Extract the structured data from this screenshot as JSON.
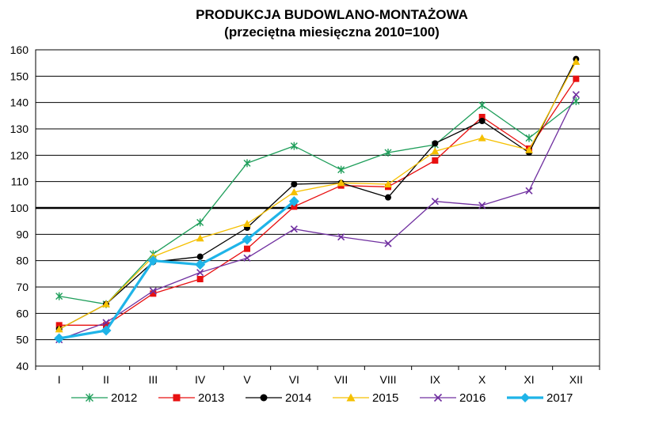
{
  "chart_data": {
    "type": "line",
    "title": "PRODUKCJA BUDOWLANO-MONTAŻOWA",
    "subtitle": "(przeciętna miesięczna 2010=100)",
    "xlabel": "",
    "ylabel": "",
    "categories": [
      "I",
      "II",
      "III",
      "IV",
      "V",
      "VI",
      "VII",
      "VIII",
      "IX",
      "X",
      "XI",
      "XII"
    ],
    "y_ticks": [
      "40",
      "50",
      "60",
      "70",
      "80",
      "90",
      "100",
      "110",
      "120",
      "130",
      "140",
      "150",
      "160"
    ],
    "ylim": [
      40,
      160
    ],
    "reference_line": 100,
    "grid": true,
    "legend_position": "bottom",
    "series": [
      {
        "name": "2012",
        "color": "#1e9e5a",
        "marker": "asterisk",
        "values": [
          66.5,
          63.5,
          82.5,
          94.5,
          117,
          123.5,
          114.5,
          121,
          124,
          139,
          126.5,
          140.5
        ]
      },
      {
        "name": "2013",
        "color": "#e81010",
        "marker": "square",
        "values": [
          55.5,
          55.5,
          67.5,
          73,
          84.5,
          100.5,
          108.5,
          108,
          118,
          134.5,
          122.5,
          149
        ]
      },
      {
        "name": "2014",
        "color": "#000000",
        "marker": "circle",
        "values": [
          54,
          63.5,
          79.5,
          81.5,
          92.5,
          109,
          109.5,
          104,
          124.5,
          133,
          121,
          156.5
        ]
      },
      {
        "name": "2015",
        "color": "#f5c000",
        "marker": "triangle",
        "values": [
          54,
          63.5,
          81.5,
          88.5,
          94,
          106,
          109.5,
          109,
          121.5,
          126.5,
          122,
          155.5
        ]
      },
      {
        "name": "2016",
        "color": "#7030a0",
        "marker": "x",
        "values": [
          50,
          56.5,
          68.5,
          75.5,
          81,
          92,
          89,
          86.5,
          102.5,
          101,
          106.5,
          143
        ]
      },
      {
        "name": "2017",
        "color": "#1fb4e8",
        "marker": "diamond",
        "values": [
          50.5,
          53.5,
          80,
          78.5,
          88,
          102.5,
          null,
          null,
          null,
          null,
          null,
          null
        ]
      }
    ]
  }
}
